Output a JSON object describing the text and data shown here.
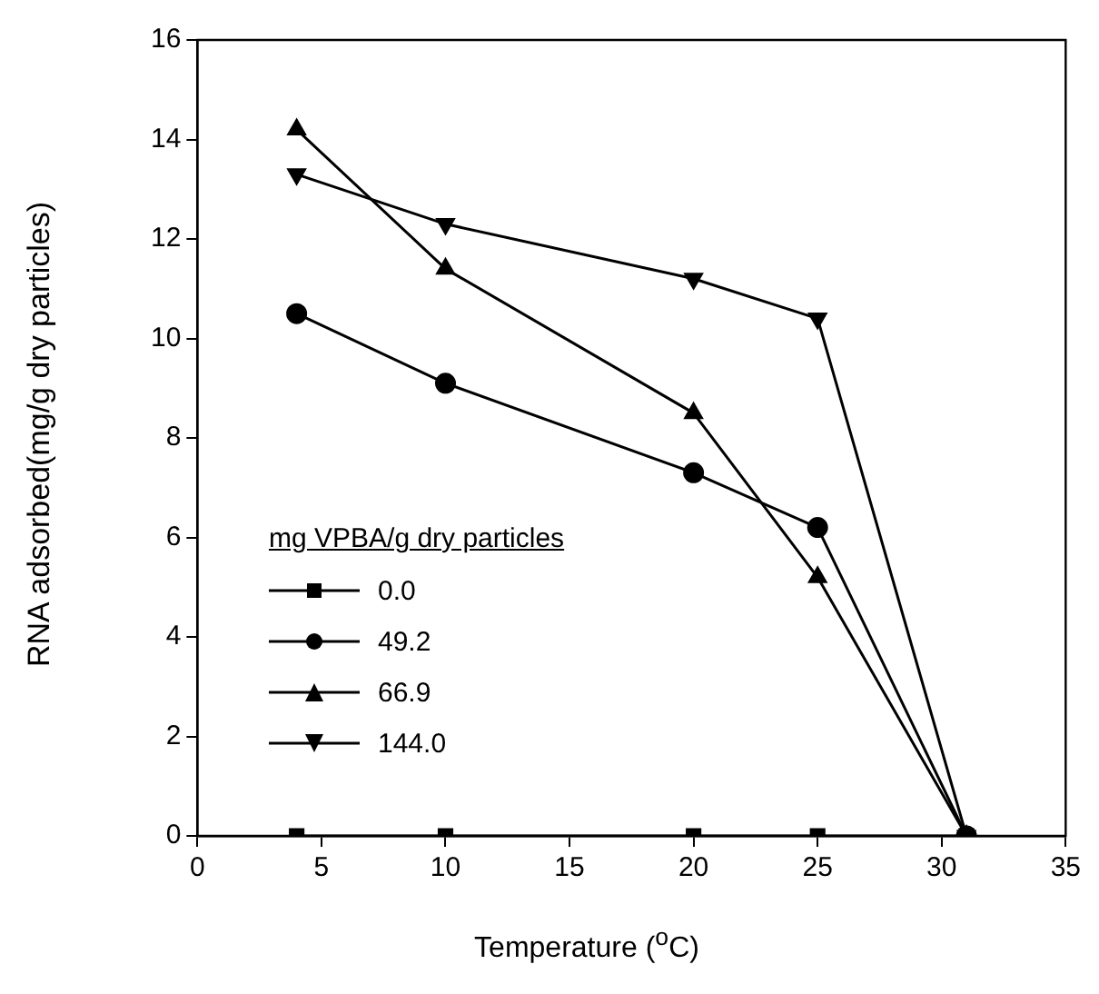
{
  "chart_data": {
    "type": "line",
    "xlabel": "Temperature ($^{o}$C)",
    "ylabel": "RNA adsorbed(mg/g dry particles)",
    "legend_title": "mg VPBA/g dry particles",
    "legend": "left",
    "x": [
      4,
      10,
      20,
      25,
      31
    ],
    "xlim": [
      0,
      35
    ],
    "xticks": [
      0,
      5,
      10,
      15,
      20,
      25,
      30,
      35
    ],
    "ylim": [
      0,
      16
    ],
    "yticks": [
      0,
      2,
      4,
      6,
      8,
      10,
      12,
      14,
      16
    ],
    "grid": false,
    "series": [
      {
        "name": "0.0",
        "color": "#000000",
        "marker": "square",
        "values": [
          0,
          0,
          0,
          0,
          0
        ]
      },
      {
        "name": "49.2",
        "color": "#000000",
        "marker": "circle",
        "values": [
          10.5,
          9.1,
          7.3,
          6.2,
          0
        ]
      },
      {
        "name": "66.9",
        "color": "#000000",
        "marker": "triangle",
        "values": [
          14.2,
          11.4,
          8.5,
          5.2,
          0
        ]
      },
      {
        "name": "144.0",
        "color": "#000000",
        "marker": "triangle-down",
        "values": [
          13.3,
          12.3,
          11.2,
          10.4,
          0
        ]
      }
    ]
  }
}
